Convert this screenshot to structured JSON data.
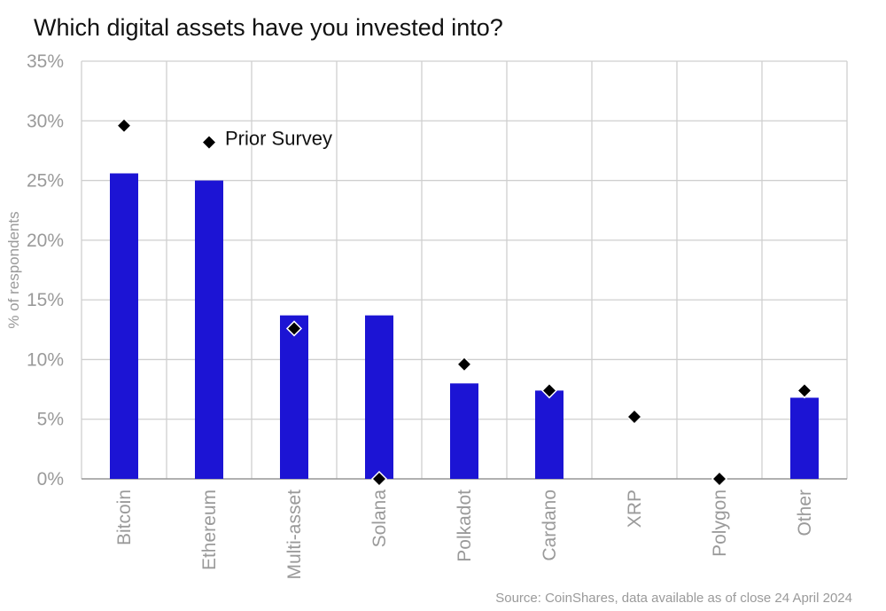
{
  "chart_data": {
    "type": "bar",
    "title": "Which digital assets have you invested into?",
    "ylabel": "% of respondents",
    "xlabel": "",
    "ylim": [
      0,
      35
    ],
    "yticks": [
      0,
      5,
      10,
      15,
      20,
      25,
      30,
      35
    ],
    "ytick_labels": [
      "0%",
      "5%",
      "10%",
      "15%",
      "20%",
      "25%",
      "30%",
      "35%"
    ],
    "categories": [
      "Bitcoin",
      "Ethereum",
      "Multi-asset",
      "Solana",
      "Polkadot",
      "Cardano",
      "XRP",
      "Polygon",
      "Other"
    ],
    "series": [
      {
        "values": [
          25.6,
          25.0,
          13.7,
          13.7,
          8.0,
          7.4,
          0,
          0,
          6.8
        ],
        "color": "#1c14d4",
        "kind": "bar"
      },
      {
        "name": "Prior Survey",
        "values": [
          29.6,
          28.2,
          12.6,
          0,
          9.6,
          7.4,
          5.2,
          0,
          7.4
        ],
        "color": "#000000",
        "kind": "marker-diamond"
      }
    ],
    "annotations": [
      {
        "text": "Prior Survey",
        "category": "Ethereum"
      }
    ],
    "grid": true,
    "source": "Source: CoinShares, data available as of close 24 April 2024"
  }
}
